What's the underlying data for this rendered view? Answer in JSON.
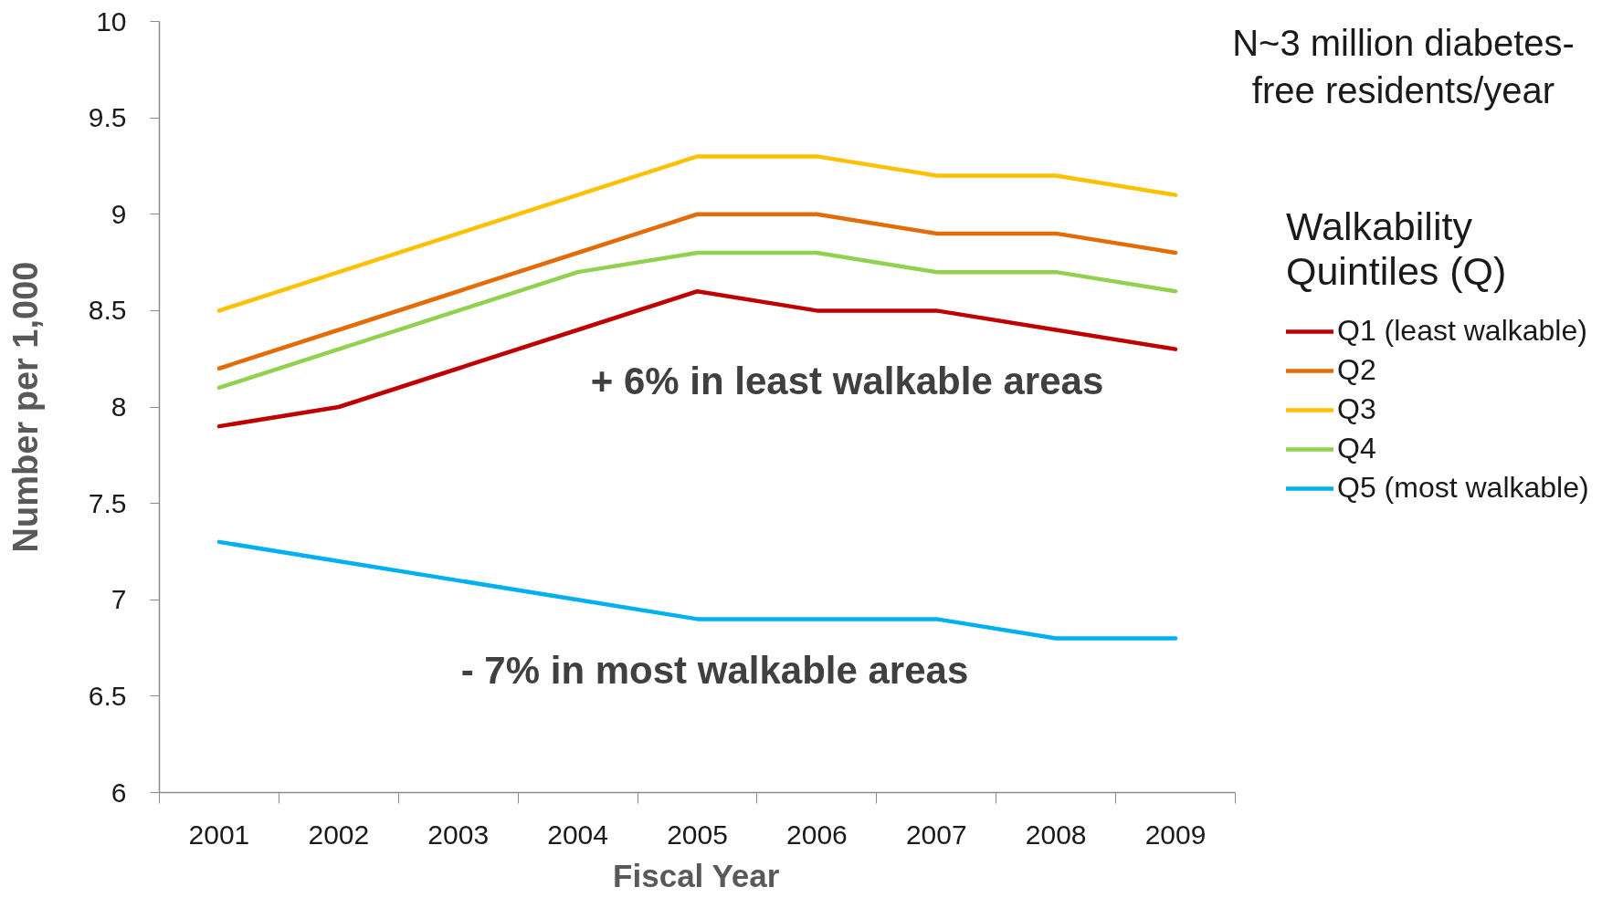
{
  "chart_data": {
    "type": "line",
    "xlabel": "Fiscal Year",
    "ylabel": "Number per 1,000",
    "legend_title": "Walkability Quintiles (Q)",
    "legend": "right",
    "categories": [
      "2001",
      "2002",
      "2003",
      "2004",
      "2005",
      "2006",
      "2007",
      "2008",
      "2009"
    ],
    "ylim": [
      6,
      10
    ],
    "yticks": [
      6,
      6.5,
      7,
      7.5,
      8,
      8.5,
      9,
      9.5,
      10
    ],
    "series": [
      {
        "name": "Q1 (least walkable)",
        "color": "#c00000",
        "values": [
          7.9,
          8.0,
          8.2,
          8.4,
          8.6,
          8.5,
          8.5,
          8.4,
          8.3
        ]
      },
      {
        "name": "Q2",
        "color": "#e36c09",
        "values": [
          8.2,
          8.4,
          8.6,
          8.8,
          9.0,
          9.0,
          8.9,
          8.9,
          8.8
        ]
      },
      {
        "name": "Q3",
        "color": "#ffc000",
        "values": [
          8.5,
          8.7,
          8.9,
          9.1,
          9.3,
          9.3,
          9.2,
          9.2,
          9.1
        ]
      },
      {
        "name": "Q4",
        "color": "#92d050",
        "values": [
          8.1,
          8.3,
          8.5,
          8.7,
          8.8,
          8.8,
          8.7,
          8.7,
          8.6
        ]
      },
      {
        "name": "Q5 (most walkable)",
        "color": "#00b0f0",
        "values": [
          7.3,
          7.2,
          7.1,
          7.0,
          6.9,
          6.9,
          6.9,
          6.8,
          6.8
        ]
      }
    ],
    "annotations": [
      "N~3 million diabetes-free residents/year",
      "+ 6% in least walkable areas",
      "- 7% in most walkable areas"
    ]
  }
}
